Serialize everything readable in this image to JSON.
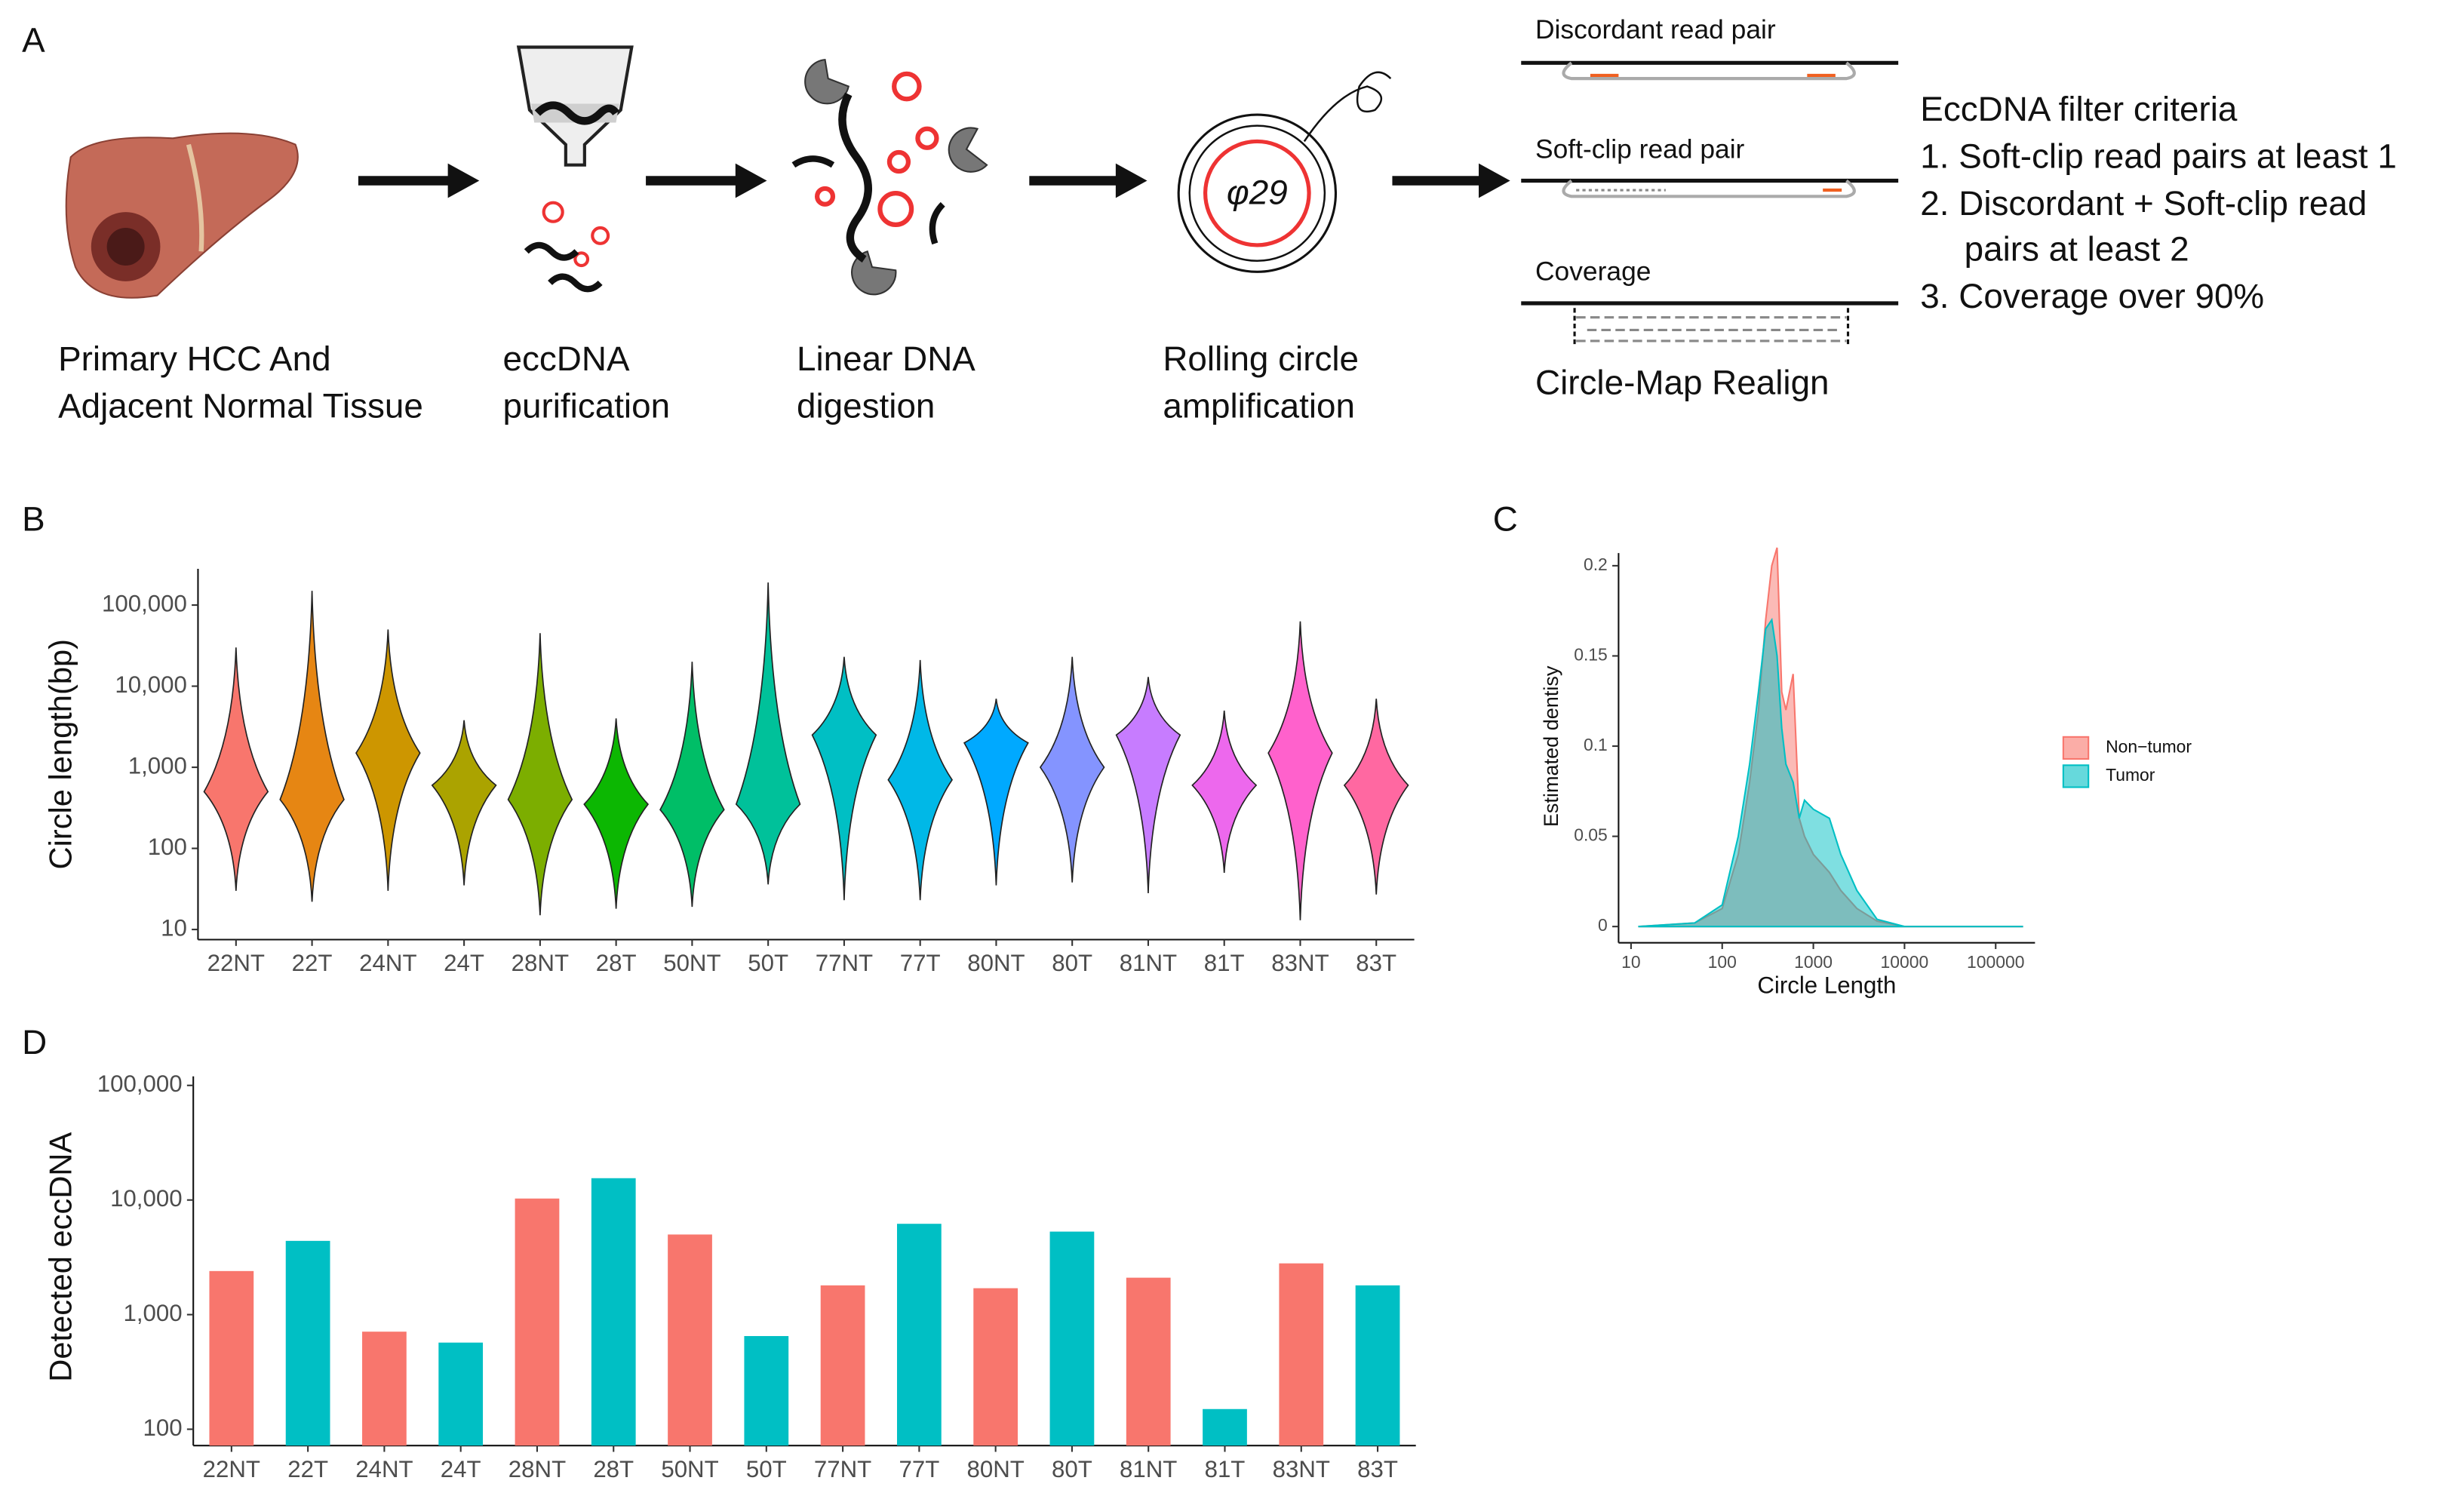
{
  "panel_labels": [
    "A",
    "B",
    "C",
    "D"
  ],
  "workflow": {
    "steps": [
      [
        "Primary HCC And",
        "Adjacent Normal Tissue"
      ],
      [
        "eccDNA",
        "purification"
      ],
      [
        "Linear DNA",
        "digestion"
      ],
      [
        "Rolling circle",
        "amplification"
      ]
    ],
    "enzyme": "φ29",
    "reads": [
      "Discordant read pair",
      "Soft-clip read pair",
      "Coverage"
    ],
    "method": "Circle-Map Realign",
    "criteria": {
      "title": "EccDNA filter criteria",
      "items": [
        "1. Soft-clip read pairs at least 1",
        "2. Discordant + Soft-clip read",
        "pairs at least 2",
        "3. Coverage over 90%"
      ]
    }
  },
  "chart_data": [
    {
      "type": "violin",
      "ylabel": "Circle length(bp)",
      "categories": [
        "22NT",
        "22T",
        "24NT",
        "24T",
        "28NT",
        "28T",
        "50NT",
        "50T",
        "77NT",
        "77T",
        "80NT",
        "80T",
        "81NT",
        "81T",
        "83NT",
        "83T"
      ],
      "colors": [
        "#F8766D",
        "#E68613",
        "#CD9600",
        "#ABA300",
        "#7CAE00",
        "#0CB702",
        "#00BE67",
        "#00C19A",
        "#00BFC4",
        "#00B8E7",
        "#00A9FF",
        "#8494FF",
        "#C77CFF",
        "#ED68ED",
        "#FF61CC",
        "#FF68A1"
      ],
      "min": [
        30,
        22,
        30,
        35,
        15,
        18,
        19,
        36,
        23,
        23,
        35,
        38,
        28,
        50,
        13,
        27
      ],
      "max": [
        30000,
        150000,
        50000,
        3800,
        45000,
        4000,
        20000,
        190000,
        23000,
        21000,
        7000,
        23000,
        13000,
        5000,
        63000,
        7000
      ],
      "peak": [
        500,
        400,
        1500,
        600,
        400,
        350,
        300,
        350,
        2500,
        700,
        2000,
        1000,
        2500,
        600,
        1500,
        600
      ],
      "log_y": true,
      "ylim": [
        7.5,
        280000
      ],
      "yticks": [
        10,
        100,
        {
          "value": 1000,
          "label": "1,000"
        },
        {
          "value": 10000,
          "label": "10,000"
        },
        {
          "value": 100000,
          "label": "100,000"
        }
      ]
    },
    {
      "type": "area",
      "xlabel": "Circle Length",
      "ylabel": "Estimated dentisy",
      "x": [
        12,
        50,
        100,
        150,
        200,
        250,
        300,
        350,
        400,
        450,
        500,
        600,
        700,
        800,
        1000,
        1500,
        2000,
        3000,
        5000,
        10000,
        50000,
        200000
      ],
      "series": [
        {
          "name": "Non−tumor",
          "color": "#F8766D",
          "values": [
            0,
            0.002,
            0.01,
            0.04,
            0.08,
            0.12,
            0.17,
            0.2,
            0.21,
            0.13,
            0.12,
            0.14,
            0.06,
            0.05,
            0.04,
            0.03,
            0.02,
            0.01,
            0.003,
            0,
            0,
            0
          ]
        },
        {
          "name": "Tumor",
          "color": "#00BFC4",
          "values": [
            0,
            0.002,
            0.012,
            0.05,
            0.09,
            0.13,
            0.165,
            0.17,
            0.15,
            0.11,
            0.09,
            0.08,
            0.06,
            0.07,
            0.065,
            0.06,
            0.04,
            0.02,
            0.004,
            0,
            0,
            0
          ]
        }
      ],
      "log_x": true,
      "xlim": [
        7.3,
        270000
      ],
      "xticks": [
        10,
        100,
        1000,
        10000,
        100000
      ],
      "ylim": [
        -0.009,
        0.207
      ],
      "yticks": [
        0,
        0.05,
        0.1,
        0.15,
        0.2
      ],
      "legend": "right"
    },
    {
      "type": "bar",
      "ylabel": "Detected eccDNA",
      "categories": [
        "22NT",
        "22T",
        "24NT",
        "24T",
        "28NT",
        "28T",
        "50NT",
        "50T",
        "77NT",
        "77T",
        "80NT",
        "80T",
        "81NT",
        "81T",
        "83NT",
        "83T"
      ],
      "values": [
        2400,
        4400,
        710,
        570,
        10300,
        15500,
        5000,
        650,
        1800,
        6200,
        1700,
        5300,
        2100,
        150,
        2800,
        1800
      ],
      "colors": [
        "#F8766D",
        "#00BFC4",
        "#F8766D",
        "#00BFC4",
        "#F8766D",
        "#00BFC4",
        "#F8766D",
        "#00BFC4",
        "#F8766D",
        "#00BFC4",
        "#F8766D",
        "#00BFC4",
        "#F8766D",
        "#00BFC4",
        "#F8766D",
        "#00BFC4"
      ],
      "log_y": true,
      "ylim": [
        72,
        120000
      ],
      "yticks": [
        100,
        {
          "value": 1000,
          "label": "1,000"
        },
        {
          "value": 10000,
          "label": "10,000"
        },
        {
          "value": 100000,
          "label": "100,000"
        }
      ]
    }
  ]
}
